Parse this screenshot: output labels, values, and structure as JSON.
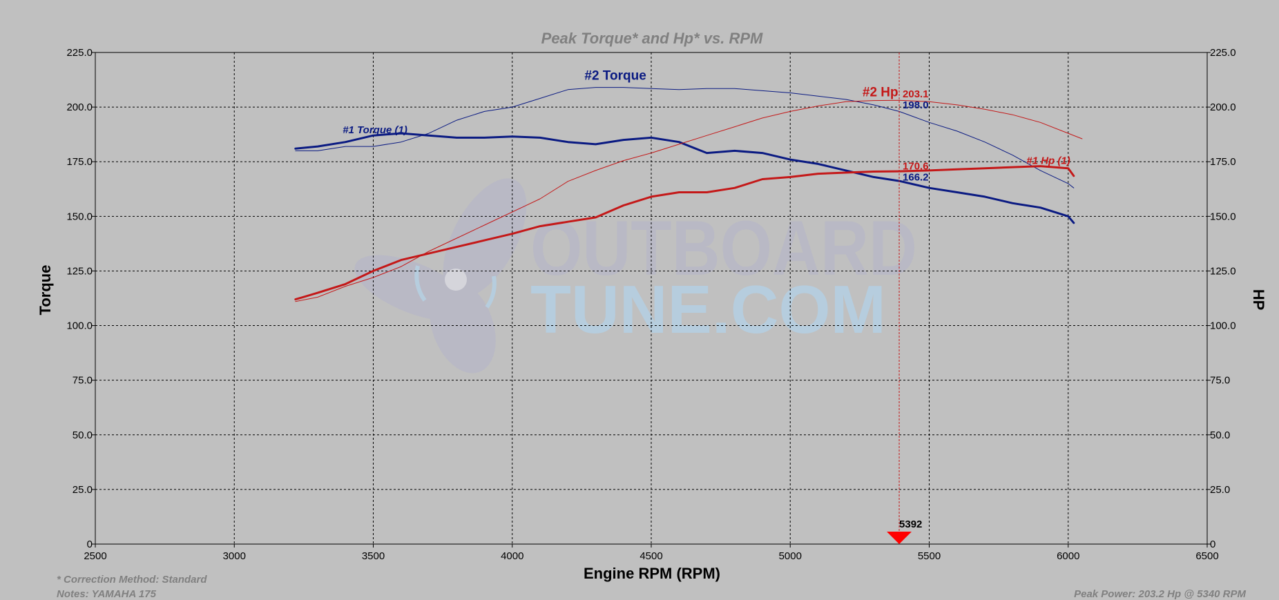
{
  "chart_data": {
    "type": "line",
    "title": "Peak Torque* and Hp* vs. RPM",
    "xlabel": "Engine RPM (RPM)",
    "ylabel_left": "Torque",
    "ylabel_right": "HP",
    "xlim": [
      2500,
      6500
    ],
    "ylim": [
      0,
      225
    ],
    "x_ticks": [
      "2500",
      "3000",
      "3500",
      "4000",
      "4500",
      "5000",
      "5500",
      "6000",
      "6500"
    ],
    "y_ticks": [
      "0",
      "25.0",
      "50.0",
      "75.0",
      "100.0",
      "125.0",
      "150.0",
      "175.0",
      "200.0",
      "225.0"
    ],
    "grid": true,
    "series": [
      {
        "name": "#1 Torque (1)",
        "axis": "left",
        "color": "#0a1a82",
        "weight": "thick",
        "x": [
          3220,
          3300,
          3400,
          3500,
          3600,
          3700,
          3800,
          3900,
          4000,
          4100,
          4200,
          4300,
          4400,
          4500,
          4600,
          4700,
          4800,
          4900,
          5000,
          5100,
          5200,
          5300,
          5392,
          5500,
          5600,
          5700,
          5800,
          5900,
          6000,
          6020
        ],
        "values": [
          181,
          182,
          184,
          187,
          188,
          187,
          186,
          186,
          186.5,
          186,
          184,
          183,
          185,
          186,
          184,
          179,
          180,
          179,
          176,
          174,
          171,
          168,
          166.2,
          163,
          161,
          159,
          156,
          154,
          150,
          147
        ]
      },
      {
        "name": "#2 Torque",
        "axis": "left",
        "color": "#0a1a82",
        "weight": "thin",
        "x": [
          3220,
          3300,
          3400,
          3500,
          3600,
          3700,
          3800,
          3900,
          4000,
          4100,
          4200,
          4300,
          4400,
          4500,
          4600,
          4700,
          4800,
          4900,
          5000,
          5100,
          5200,
          5300,
          5392,
          5500,
          5600,
          5700,
          5800,
          5900,
          6000,
          6020
        ],
        "values": [
          180,
          180,
          182,
          182,
          184,
          188,
          194,
          198,
          200,
          204,
          208,
          209,
          209,
          208.5,
          208,
          208.5,
          208.5,
          207.5,
          206.5,
          205,
          203.5,
          201,
          198.0,
          193,
          189,
          184,
          178,
          171,
          165,
          163
        ]
      },
      {
        "name": "#1 Hp (1)",
        "axis": "right",
        "color": "#c41818",
        "weight": "thick",
        "x": [
          3220,
          3300,
          3400,
          3500,
          3600,
          3700,
          3800,
          3900,
          4000,
          4100,
          4200,
          4300,
          4400,
          4500,
          4600,
          4700,
          4800,
          4900,
          5000,
          5100,
          5200,
          5300,
          5392,
          5500,
          5600,
          5700,
          5800,
          5900,
          6000,
          6020
        ],
        "values": [
          112,
          115,
          119,
          125,
          130,
          133,
          136,
          139,
          142,
          145.5,
          147.5,
          149.5,
          155,
          159,
          161,
          161,
          163,
          167,
          168,
          169.5,
          170,
          170.5,
          170.6,
          171,
          171.5,
          172,
          172.5,
          173,
          172,
          168.5
        ]
      },
      {
        "name": "#2 Hp",
        "axis": "right",
        "color": "#c41818",
        "weight": "thin",
        "x": [
          3220,
          3300,
          3400,
          3500,
          3600,
          3700,
          3800,
          3900,
          4000,
          4100,
          4200,
          4300,
          4400,
          4500,
          4600,
          4700,
          4800,
          4900,
          5000,
          5100,
          5200,
          5300,
          5392,
          5500,
          5600,
          5700,
          5800,
          5900,
          6000,
          6050
        ],
        "values": [
          111,
          113,
          118,
          122,
          127,
          134,
          140,
          146,
          152,
          158,
          166,
          171,
          175.5,
          179,
          183,
          187,
          191,
          195,
          198,
          200.5,
          202.5,
          203,
          203.1,
          202.5,
          201,
          199,
          196.5,
          193,
          188,
          185.5
        ]
      }
    ],
    "series_labels": [
      {
        "text": "#2 Torque",
        "color": "#0a1a82",
        "x": 4260,
        "y": 212.5,
        "size": 19,
        "italic": false
      },
      {
        "text": "#1 Torque (1)",
        "color": "#0a1a82",
        "x": 3390,
        "y": 188,
        "size": 15,
        "italic": true
      },
      {
        "text": "#2 Hp",
        "color": "#c41818",
        "x": 5260,
        "y": 205,
        "size": 19,
        "italic": false
      },
      {
        "text": "#1 Hp (1)",
        "color": "#c41818",
        "x": 5850,
        "y": 174,
        "size": 15,
        "italic": true
      }
    ],
    "cursor": {
      "x": 5392,
      "label": "5392",
      "readouts": [
        {
          "text": "203.1",
          "color": "#c41818",
          "y": 206
        },
        {
          "text": "198.0",
          "color": "#0a1a82",
          "y": 201
        },
        {
          "text": "170.6",
          "color": "#c41818",
          "y": 173
        },
        {
          "text": "166.2",
          "color": "#0a1a82",
          "y": 168
        }
      ]
    }
  },
  "footer": {
    "correction": "* Correction Method: Standard",
    "notes": "Notes: YAMAHA 175",
    "peak": "Peak Power: 203.2 Hp @ 5340 RPM"
  },
  "watermark": {
    "line1": "OUTBOARD",
    "line2": "TUNE.COM",
    "color1": "#b8b8c6",
    "color2": "#b4cfe3"
  }
}
